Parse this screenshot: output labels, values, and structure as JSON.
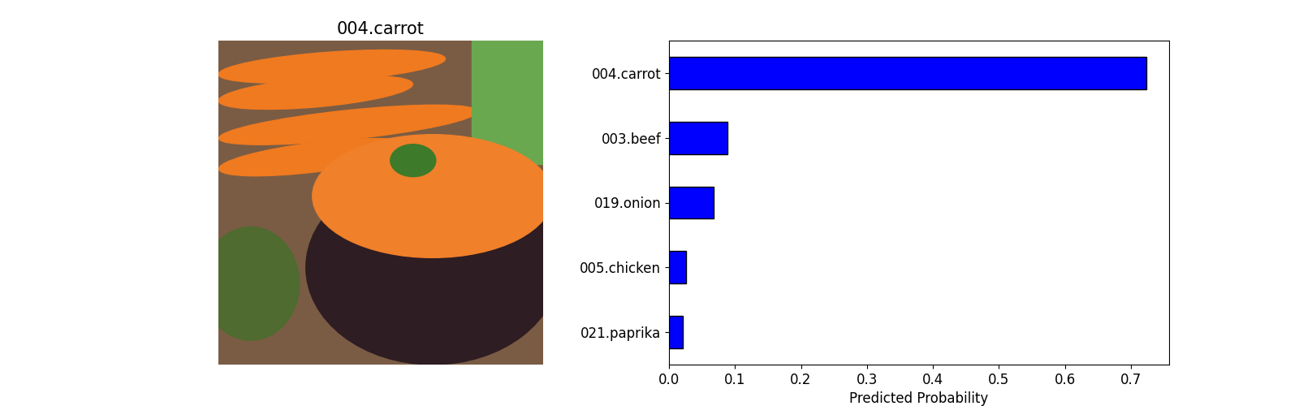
{
  "image": {
    "title": "004.carrot"
  },
  "chart_data": {
    "type": "bar",
    "orientation": "horizontal",
    "categories": [
      "004.carrot",
      "003.beef",
      "019.onion",
      "005.chicken",
      "021.paprika"
    ],
    "values": [
      0.723,
      0.089,
      0.068,
      0.026,
      0.021
    ],
    "color": "blue",
    "x_label": "Predicted Probability",
    "xlim": [
      0.0,
      0.758
    ],
    "xticks": [
      0.0,
      0.1,
      0.2,
      0.3,
      0.4,
      0.5,
      0.6,
      0.7
    ],
    "grid": false
  }
}
